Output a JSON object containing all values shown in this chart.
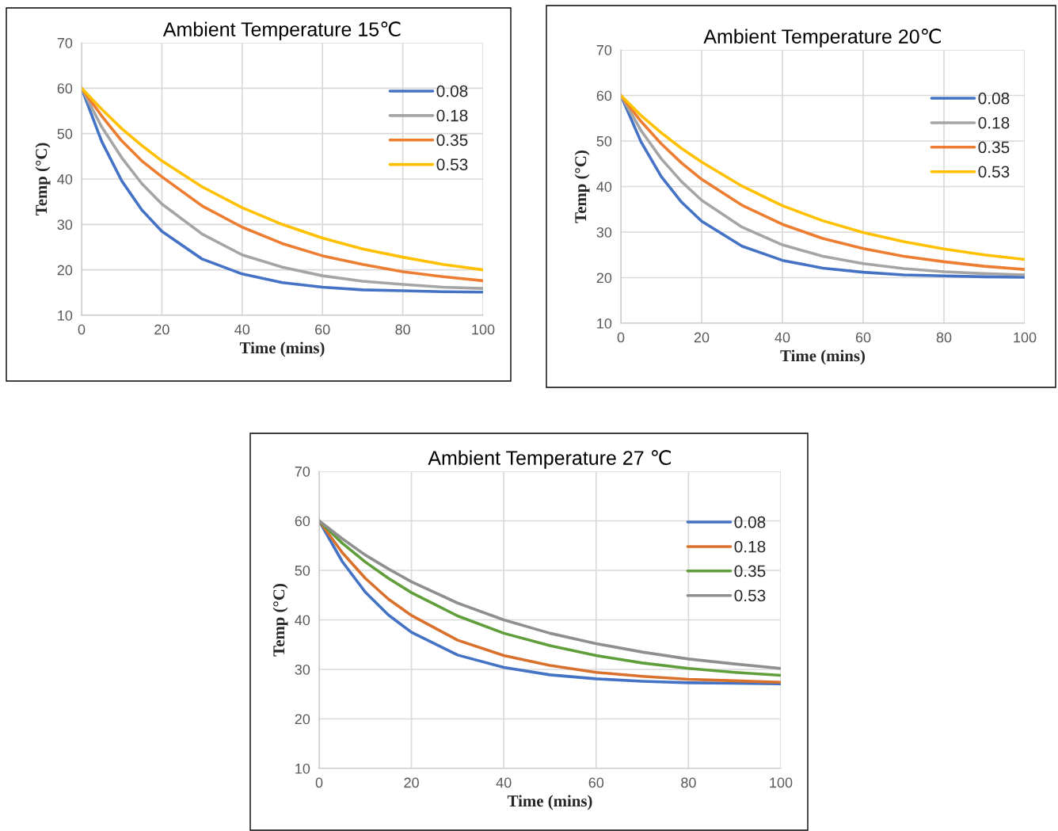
{
  "chart_data": [
    {
      "type": "line",
      "title": "Ambient Temperature 15℃",
      "xlabel": "Time (mins)",
      "ylabel": "Temp (°C)",
      "x": [
        0,
        5,
        10,
        15,
        20,
        30,
        40,
        50,
        60,
        70,
        80,
        90,
        100
      ],
      "xlim": [
        0,
        100
      ],
      "xticks": [
        0,
        20,
        40,
        60,
        80,
        100
      ],
      "ylim": [
        10,
        70
      ],
      "yticks": [
        10,
        20,
        30,
        40,
        50,
        60,
        70
      ],
      "grid": true,
      "legend": "top right",
      "series": [
        {
          "name": "0.08",
          "color": "#4472c4",
          "values": [
            60,
            48.3,
            39.6,
            33.2,
            28.5,
            22.4,
            19.1,
            17.2,
            16.2,
            15.6,
            15.4,
            15.2,
            15.1
          ]
        },
        {
          "name": "0.18",
          "color": "#a5a5a5",
          "values": [
            60,
            51.5,
            44.7,
            39.0,
            34.5,
            27.9,
            23.3,
            20.6,
            18.7,
            17.5,
            16.8,
            16.2,
            15.9
          ]
        },
        {
          "name": "0.35",
          "color": "#ed7d31",
          "values": [
            60,
            53.9,
            48.4,
            44.0,
            40.5,
            34.1,
            29.4,
            25.8,
            23.1,
            21.2,
            19.6,
            18.5,
            17.6
          ]
        },
        {
          "name": "0.53",
          "color": "#ffc000",
          "values": [
            60,
            55.4,
            51.1,
            47.4,
            44.0,
            38.3,
            33.7,
            30.0,
            27.0,
            24.6,
            22.8,
            21.2,
            20.0
          ]
        }
      ]
    },
    {
      "type": "line",
      "title": "Ambient Temperature 20℃",
      "xlabel": "Time (mins)",
      "ylabel": "Temp (°C)",
      "x": [
        0,
        5,
        10,
        15,
        20,
        30,
        40,
        50,
        60,
        70,
        80,
        90,
        100
      ],
      "xlim": [
        0,
        100
      ],
      "xticks": [
        0,
        20,
        40,
        60,
        80,
        100
      ],
      "ylim": [
        10,
        70
      ],
      "yticks": [
        10,
        20,
        30,
        40,
        50,
        60,
        70
      ],
      "grid": true,
      "legend": "top right",
      "series": [
        {
          "name": "0.08",
          "color": "#4472c4",
          "values": [
            60,
            49.8,
            42.2,
            36.6,
            32.4,
            26.9,
            23.8,
            22.1,
            21.2,
            20.6,
            20.4,
            20.2,
            20.1
          ]
        },
        {
          "name": "0.18",
          "color": "#a5a5a5",
          "values": [
            60,
            52.3,
            46.1,
            41.1,
            37.0,
            31.1,
            27.2,
            24.7,
            23.1,
            22.0,
            21.3,
            20.9,
            20.6
          ]
        },
        {
          "name": "0.35",
          "color": "#ed7d31",
          "values": [
            60,
            54.3,
            49.4,
            45.2,
            41.6,
            35.9,
            31.7,
            28.6,
            26.4,
            24.7,
            23.5,
            22.5,
            21.8
          ]
        },
        {
          "name": "0.53",
          "color": "#ffc000",
          "values": [
            60,
            55.6,
            51.8,
            48.4,
            45.4,
            40.1,
            35.8,
            32.5,
            29.9,
            27.9,
            26.3,
            25.0,
            24.0
          ]
        }
      ]
    },
    {
      "type": "line",
      "title": "Ambient Temperature 27 ℃",
      "xlabel": "Time (mins)",
      "ylabel": "Temp (°C)",
      "x": [
        0,
        5,
        10,
        15,
        20,
        30,
        40,
        50,
        60,
        70,
        80,
        90,
        100
      ],
      "xlim": [
        0,
        100
      ],
      "xticks": [
        0,
        20,
        40,
        60,
        80,
        100
      ],
      "ylim": [
        10,
        70
      ],
      "yticks": [
        10,
        20,
        30,
        40,
        50,
        60,
        70
      ],
      "grid": true,
      "legend": "top right",
      "series": [
        {
          "name": "0.08",
          "color": "#4472c4",
          "values": [
            60,
            51.8,
            45.6,
            41.0,
            37.5,
            32.9,
            30.4,
            28.9,
            28.1,
            27.6,
            27.3,
            27.2,
            27.1
          ]
        },
        {
          "name": "0.18",
          "color": "#d9702b",
          "values": [
            60,
            53.6,
            48.4,
            44.2,
            40.9,
            35.9,
            32.8,
            30.8,
            29.4,
            28.6,
            28.0,
            27.7,
            27.4
          ]
        },
        {
          "name": "0.35",
          "color": "#5f9e3a",
          "values": [
            60,
            55.5,
            51.7,
            48.4,
            45.5,
            40.8,
            37.3,
            34.8,
            32.8,
            31.3,
            30.2,
            29.4,
            28.8
          ]
        },
        {
          "name": "0.53",
          "color": "#8f8f8f",
          "values": [
            60,
            56.4,
            53.1,
            50.3,
            47.7,
            43.4,
            40.0,
            37.3,
            35.2,
            33.5,
            32.1,
            31.1,
            30.2
          ]
        }
      ]
    }
  ]
}
